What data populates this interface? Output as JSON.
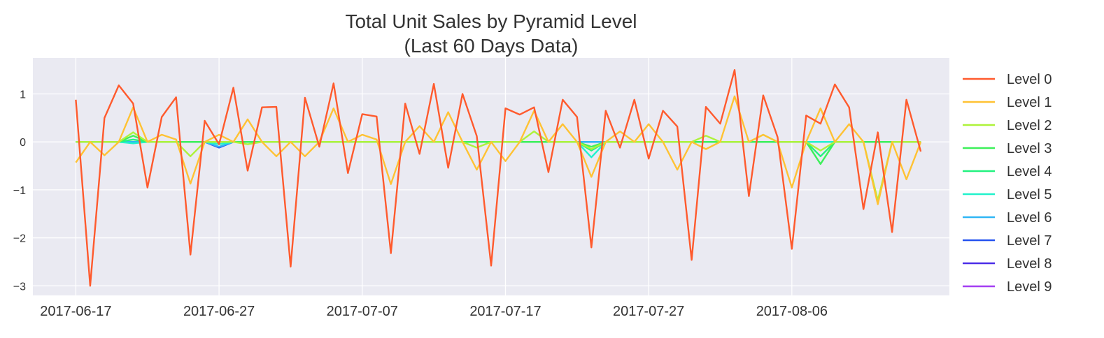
{
  "chart_data": {
    "type": "line",
    "title_line1": "Total Unit Sales by Pyramid Level",
    "title_line2": "(Last 60 Days Data)",
    "xlabel": "",
    "ylabel": "",
    "x_start": "2017-06-17",
    "x_end": "2017-08-15",
    "xlim": [
      "2017-06-14",
      "2017-08-17"
    ],
    "ylim": [
      -3.2,
      1.75
    ],
    "x_ticks": [
      "2017-06-17",
      "2017-06-27",
      "2017-07-07",
      "2017-07-17",
      "2017-07-27",
      "2017-08-06"
    ],
    "y_ticks": [
      1,
      0,
      -1,
      -2,
      -3
    ],
    "y_tick_labels": [
      "1",
      "0",
      "−1",
      "−2",
      "−3"
    ],
    "grid": true,
    "legend_position": "right",
    "background": "#eaeaf2",
    "series": [
      {
        "name": "Level 0",
        "color": "#ff5a2d",
        "values": [
          0.88,
          -3.0,
          0.5,
          1.18,
          0.8,
          -0.95,
          0.52,
          0.93,
          -2.35,
          0.44,
          -0.05,
          1.13,
          -0.6,
          0.72,
          0.73,
          -2.6,
          0.92,
          -0.1,
          1.22,
          -0.65,
          0.58,
          0.53,
          -2.32,
          0.8,
          -0.25,
          1.21,
          -0.54,
          1.0,
          0.12,
          -2.58,
          0.7,
          0.57,
          0.72,
          -0.63,
          0.88,
          0.52,
          -2.2,
          0.65,
          -0.12,
          0.88,
          -0.35,
          0.65,
          0.32,
          -2.46,
          0.73,
          0.38,
          1.5,
          -1.13,
          0.97,
          0.1,
          -2.23,
          0.55,
          0.38,
          1.2,
          0.72,
          -1.4,
          0.2,
          -1.88,
          0.88,
          -0.2
        ]
      },
      {
        "name": "Level 1",
        "color": "#ffc233",
        "values": [
          -0.43,
          0.0,
          -0.28,
          0.0,
          0.72,
          0.0,
          0.15,
          0.05,
          -0.87,
          0.0,
          0.15,
          0.0,
          0.47,
          0.0,
          -0.3,
          0.0,
          -0.3,
          0.0,
          0.7,
          0.0,
          0.15,
          0.05,
          -0.88,
          0.0,
          0.33,
          0.0,
          0.62,
          0.0,
          -0.58,
          0.0,
          -0.4,
          0.0,
          0.65,
          0.0,
          0.37,
          0.0,
          -0.73,
          0.0,
          0.22,
          0.0,
          0.37,
          0.0,
          -0.58,
          0.0,
          -0.15,
          0.0,
          0.95,
          0.0,
          0.15,
          0.0,
          -0.95,
          0.0,
          0.7,
          0.0,
          0.37,
          0.0,
          -1.3,
          0.0,
          -0.78,
          0.0
        ]
      },
      {
        "name": "Level 2",
        "color": "#aef23a",
        "values": [
          0,
          0,
          0,
          0,
          0.2,
          0,
          0,
          0,
          -0.3,
          0,
          0,
          0,
          -0.05,
          0,
          0,
          0,
          0,
          0,
          0,
          0,
          0,
          0,
          0,
          0,
          0,
          0,
          0,
          0,
          -0.12,
          0,
          0,
          0,
          0.22,
          0,
          0,
          0,
          -0.15,
          0,
          0,
          0,
          0,
          0,
          0,
          0,
          0.13,
          0,
          0,
          0,
          0.15,
          0,
          0,
          0,
          -0.18,
          0,
          0,
          0,
          -1.22,
          0,
          0,
          0
        ]
      },
      {
        "name": "Level 3",
        "color": "#3df05a",
        "values": [
          0,
          0,
          0,
          0,
          0.13,
          0,
          0,
          0,
          0,
          0,
          0,
          0,
          0,
          0,
          0,
          0,
          0,
          0,
          0,
          0,
          0,
          0,
          0,
          0,
          0,
          0,
          0,
          0,
          0,
          0,
          0,
          0,
          0,
          0,
          0,
          0,
          -0.1,
          0,
          0,
          0,
          0,
          0,
          0,
          0,
          0,
          0,
          0,
          0,
          0,
          0,
          0,
          0,
          -0.46,
          0,
          0,
          0,
          0,
          0,
          0,
          0
        ]
      },
      {
        "name": "Level 4",
        "color": "#22f27f",
        "values": [
          0,
          0,
          0,
          0,
          0.05,
          0,
          0,
          0,
          0,
          0,
          0,
          0,
          0,
          0,
          0,
          0,
          0,
          0,
          0,
          0,
          0,
          0,
          0,
          0,
          0,
          0,
          0,
          0,
          0,
          0,
          0,
          0,
          0,
          0,
          0,
          0,
          -0.18,
          0,
          0,
          0,
          0,
          0,
          0,
          0,
          0,
          0,
          0,
          0,
          0,
          0,
          0,
          0,
          -0.3,
          0,
          0,
          0,
          0,
          0,
          0,
          0
        ]
      },
      {
        "name": "Level 5",
        "color": "#22f2cc",
        "values": [
          0,
          0,
          0,
          0,
          -0.03,
          0,
          0,
          0,
          0,
          0,
          -0.05,
          0,
          0,
          0,
          0,
          0,
          0,
          0,
          0,
          0,
          0,
          0,
          0,
          0,
          0,
          0,
          0,
          0,
          0,
          0,
          0,
          0,
          0,
          0,
          0,
          0,
          -0.32,
          0,
          0,
          0,
          0,
          0,
          0,
          0,
          0,
          0,
          0,
          0,
          0,
          0,
          0,
          0,
          0,
          0,
          0,
          0,
          0,
          0,
          0,
          0
        ]
      },
      {
        "name": "Level 6",
        "color": "#30b6f5",
        "values": [
          0,
          0,
          0,
          0,
          0,
          0,
          0,
          0,
          0,
          0,
          -0.1,
          0,
          0,
          0,
          0,
          0,
          0,
          0,
          0,
          0,
          0,
          0,
          0,
          0,
          0,
          0,
          0,
          0,
          0,
          0,
          0,
          0,
          0,
          0,
          0,
          0,
          0,
          0,
          0,
          0,
          0,
          0,
          0,
          0,
          0,
          0,
          0,
          0,
          0,
          0,
          0,
          0,
          0,
          0,
          0,
          0,
          0,
          0,
          0,
          0
        ]
      },
      {
        "name": "Level 7",
        "color": "#2553f0",
        "values": [
          0,
          0,
          0,
          0,
          0,
          0,
          0,
          0,
          0,
          0,
          -0.12,
          0,
          0,
          0,
          0,
          0,
          0,
          0,
          0,
          0,
          0,
          0,
          0,
          0,
          0,
          0,
          0,
          0,
          0,
          0,
          0,
          0,
          0,
          0,
          0,
          0,
          0,
          0,
          0,
          0,
          0,
          0,
          0,
          0,
          0,
          0,
          0,
          0,
          0,
          0,
          0,
          0,
          0,
          0,
          0,
          0,
          0,
          0,
          0,
          0
        ]
      },
      {
        "name": "Level 8",
        "color": "#4b2ee8",
        "values": [
          0,
          0,
          0,
          0,
          0,
          0,
          0,
          0,
          0,
          0,
          0,
          0,
          0,
          0,
          0,
          0,
          0,
          0,
          0,
          0,
          0,
          0,
          0,
          0,
          0,
          0,
          0,
          0,
          0,
          0,
          0,
          0,
          0,
          0,
          0,
          0,
          0,
          0,
          0,
          0,
          0,
          0,
          0,
          0,
          0,
          0,
          0,
          0,
          0,
          0,
          0,
          0,
          0,
          0,
          0,
          0,
          0,
          0,
          0,
          0
        ]
      },
      {
        "name": "Level 9",
        "color": "#a43ef2",
        "values": [
          0,
          0,
          0,
          0,
          0,
          0,
          0,
          0,
          0,
          0,
          0,
          0,
          0,
          0,
          0,
          0,
          0,
          0,
          0,
          0,
          0,
          0,
          0,
          0,
          0,
          0,
          0,
          0,
          0,
          0,
          0,
          0,
          0,
          0,
          0,
          0,
          0,
          0,
          0,
          0,
          0,
          0,
          0,
          0,
          0,
          0,
          0,
          0,
          0,
          0,
          0,
          0,
          0,
          0,
          0,
          0,
          0,
          0,
          0,
          0
        ]
      }
    ]
  }
}
